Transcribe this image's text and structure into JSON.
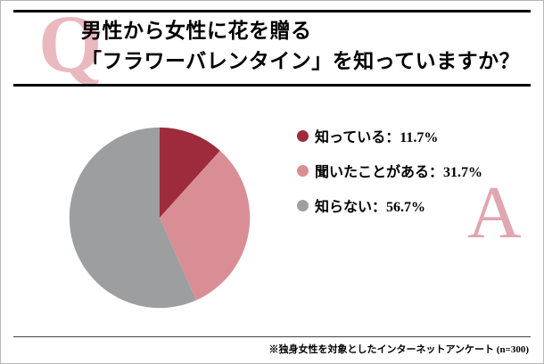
{
  "question": {
    "q_letter": "Q",
    "line1": "男性から女性に花を贈る",
    "line2": "「フラワーバレンタイン」を知っていますか？"
  },
  "answer": {
    "a_letter": "A"
  },
  "footnote": "※独身女性を対象としたインターネットアンケート (n=300)",
  "colors": {
    "rule": "#000000",
    "footnote_rule": "#444444",
    "qa_letter_pink": "#eab9c0",
    "frame_border": "#b5b5b5"
  },
  "chart_data": {
    "type": "pie",
    "title": "男性から女性に花を贈る「フラワーバレンタイン」を知っていますか？",
    "slices": [
      {
        "label": "知っている",
        "value": 11.7,
        "color": "#9e2b3b"
      },
      {
        "label": "聞いたことがある",
        "value": 31.7,
        "color": "#d98e96"
      },
      {
        "label": "知らない",
        "value": 56.7,
        "color": "#9d9e9f"
      }
    ],
    "start_angle": "top",
    "direction": "clockwise",
    "legend_position": "right",
    "legend_separator": "：",
    "value_suffix": "%",
    "sample_size_note": "(n=300)"
  }
}
